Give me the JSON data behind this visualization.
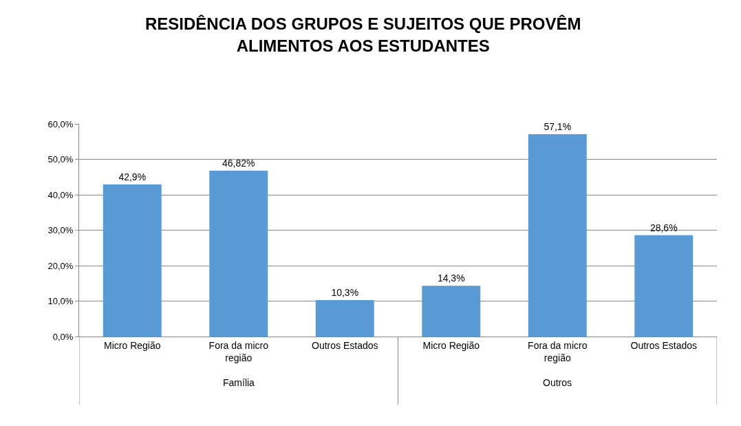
{
  "chart_data": {
    "type": "bar",
    "title": "RESIDÊNCIA DOS GRUPOS E SUJEITOS QUE PROVÊM ALIMENTOS AOS ESTUDANTES",
    "categories": [
      "Micro Região",
      "Fora da micro região",
      "Outros Estados",
      "Micro Região",
      "Fora da micro região",
      "Outros Estados"
    ],
    "values": [
      42.9,
      46.82,
      10.3,
      14.3,
      57.1,
      28.6
    ],
    "color": "#5b9bd5",
    "ylim": [
      0,
      60
    ],
    "yticks": [
      {
        "value": 0,
        "label": "0,0%"
      },
      {
        "value": 10,
        "label": "10,0%"
      },
      {
        "value": 20,
        "label": "20,0%"
      },
      {
        "value": 30,
        "label": "30,0%"
      },
      {
        "value": 40,
        "label": "40,0%"
      },
      {
        "value": 50,
        "label": "50,0%"
      },
      {
        "value": 60,
        "label": "60,0%"
      }
    ],
    "value_labels": [
      "42,9%",
      "46,82%",
      "10,3%",
      "14,3%",
      "57,1%",
      "28,6%"
    ],
    "grid": "y",
    "annotations": [
      "Família",
      "Outros"
    ]
  }
}
